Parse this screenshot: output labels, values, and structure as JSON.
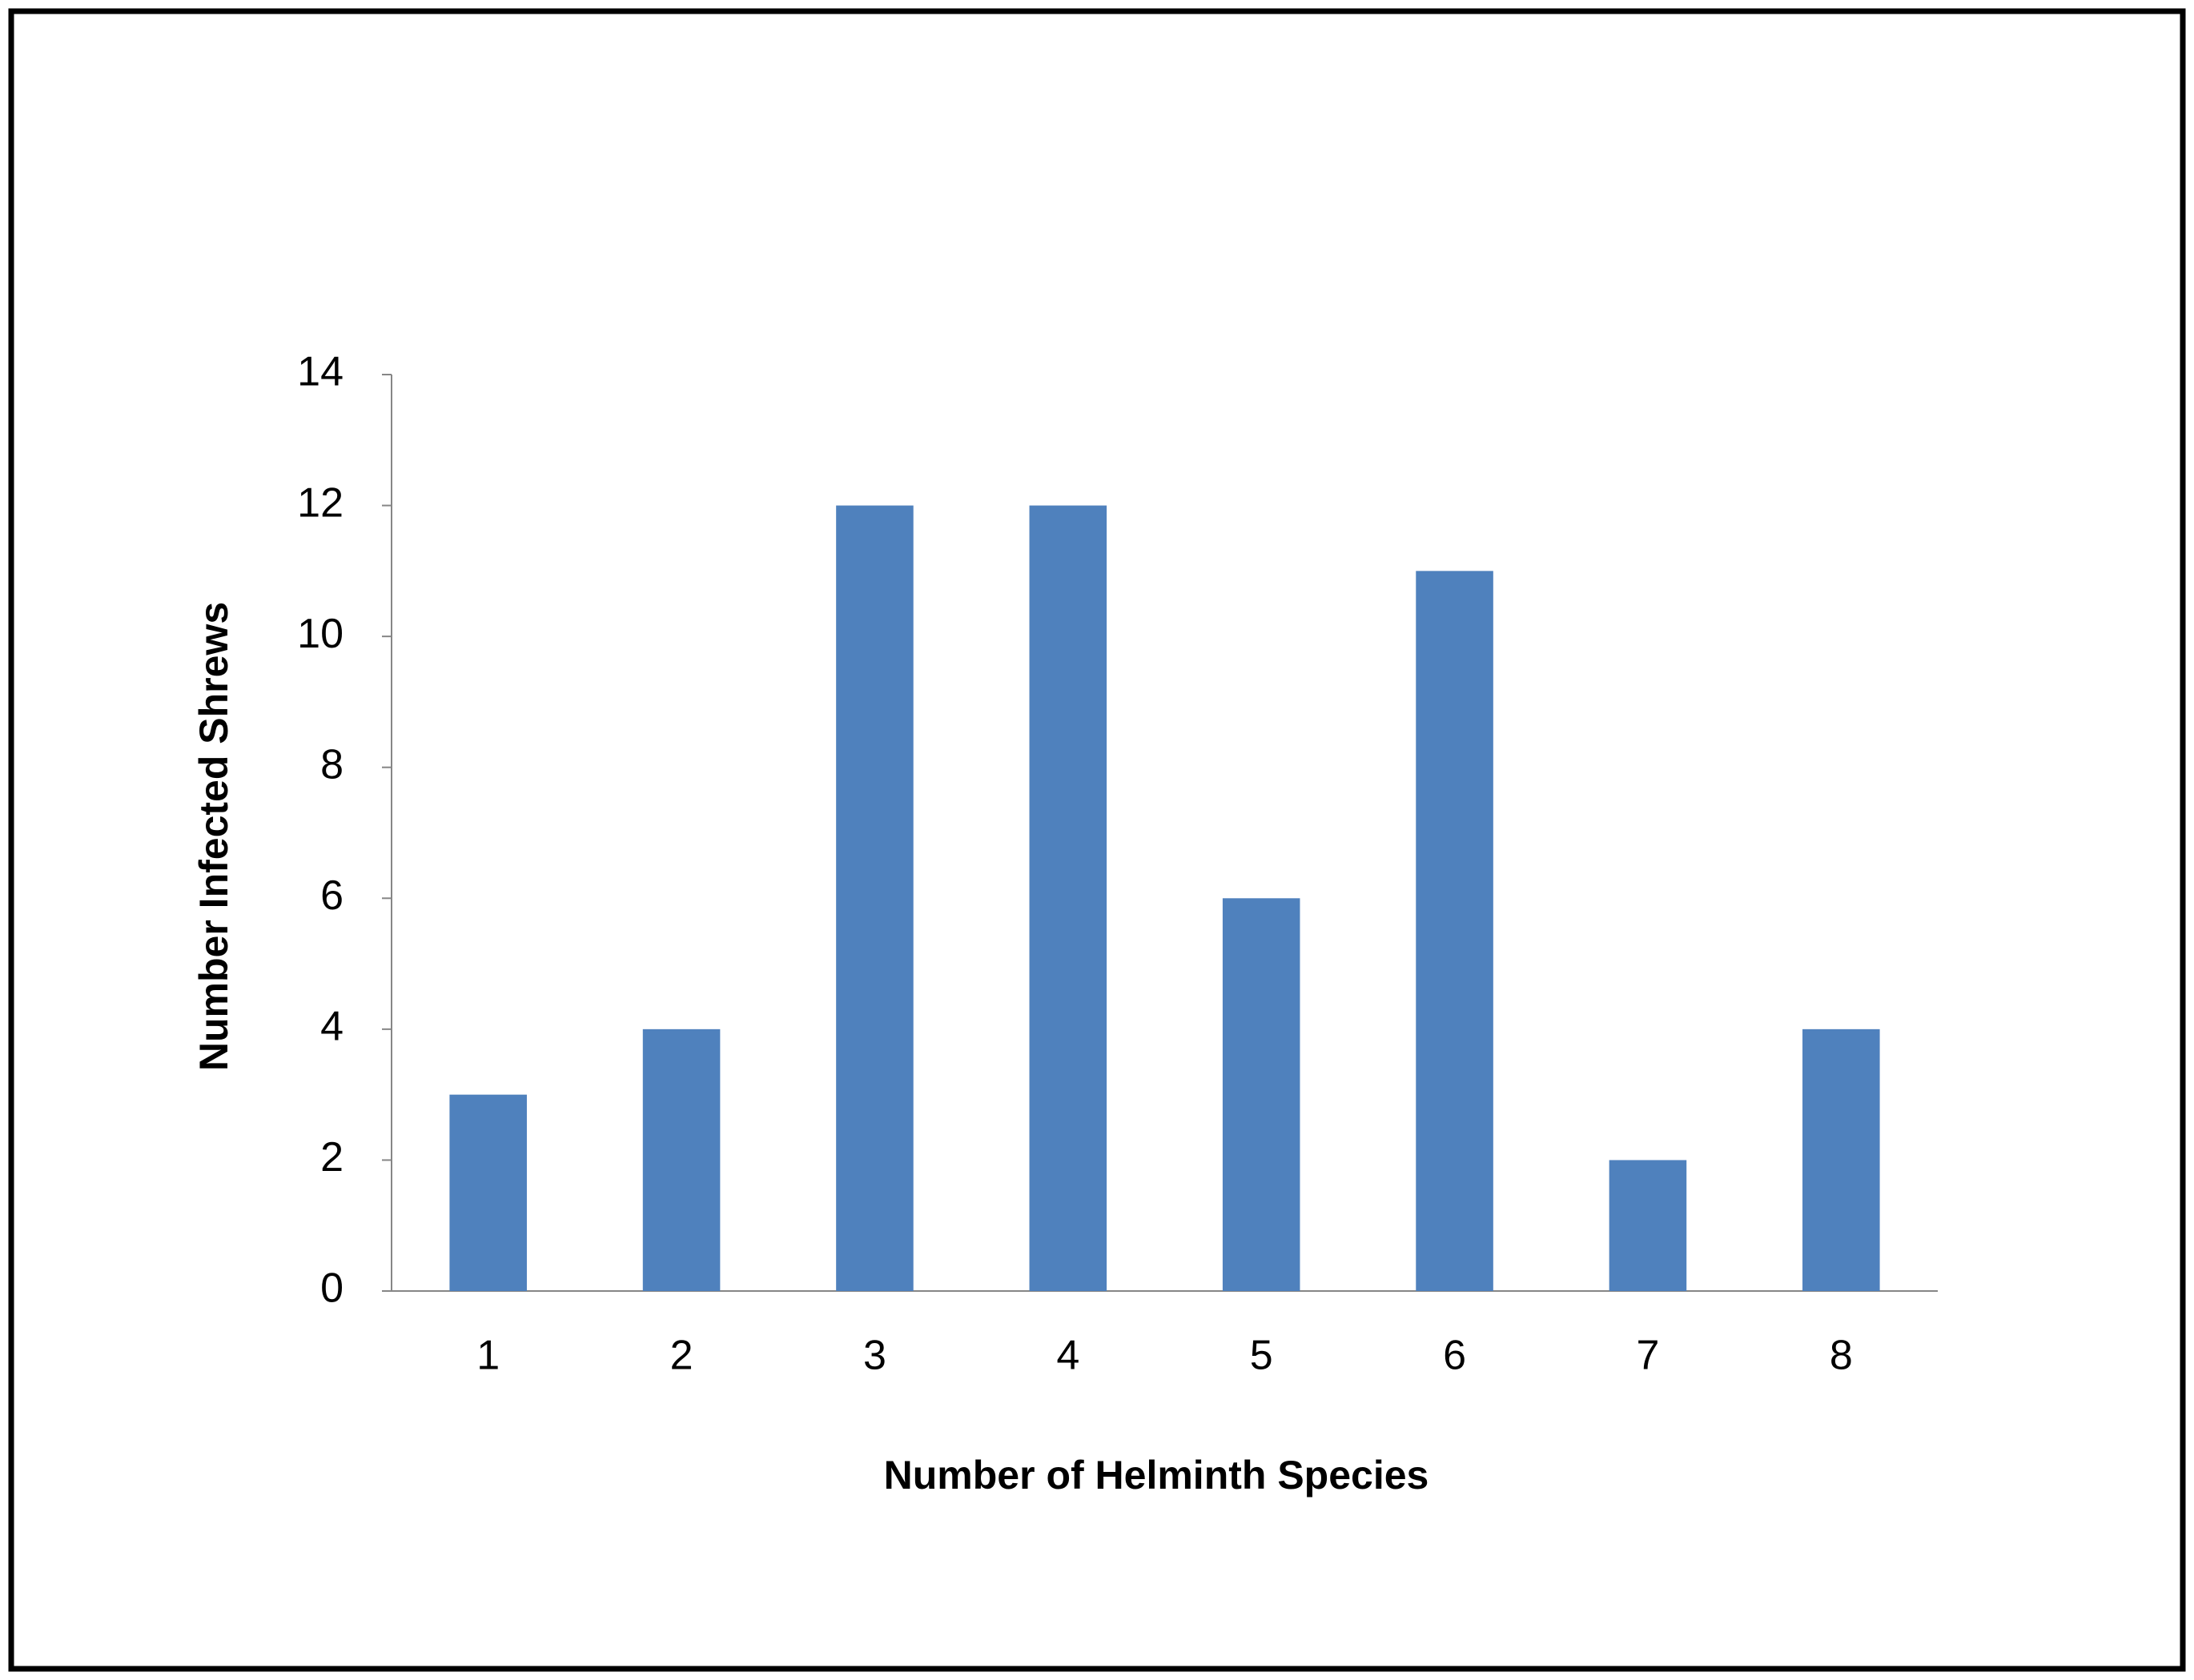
{
  "chart_data": {
    "type": "bar",
    "x_label": "Number of Helminth Species",
    "y_label": "Number Infected Shrews",
    "categories": [
      "1",
      "2",
      "3",
      "4",
      "5",
      "6",
      "7",
      "8"
    ],
    "values": [
      3,
      4,
      12,
      12,
      6,
      11,
      2,
      4
    ],
    "color": "#4f81bd",
    "ylim": [
      0,
      14
    ],
    "yticks": [
      0,
      2,
      4,
      6,
      8,
      10,
      12,
      14
    ],
    "grid": false
  }
}
